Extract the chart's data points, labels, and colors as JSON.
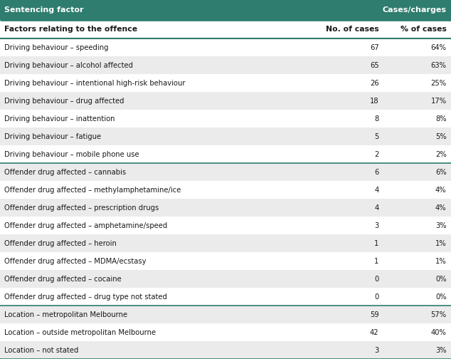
{
  "header_col1": "Sentencing factor",
  "header_col2": "Cases/charges",
  "subheader_col1": "Factors relating to the offence",
  "subheader_col2": "No. of cases",
  "subheader_col3": "% of cases",
  "rows": [
    [
      "Driving behaviour – speeding",
      "67",
      "64%"
    ],
    [
      "Driving behaviour – alcohol affected",
      "65",
      "63%"
    ],
    [
      "Driving behaviour – intentional high-risk behaviour",
      "26",
      "25%"
    ],
    [
      "Driving behaviour – drug affected",
      "18",
      "17%"
    ],
    [
      "Driving behaviour – inattention",
      "8",
      "8%"
    ],
    [
      "Driving behaviour – fatigue",
      "5",
      "5%"
    ],
    [
      "Driving behaviour – mobile phone use",
      "2",
      "2%"
    ],
    [
      "Offender drug affected – cannabis",
      "6",
      "6%"
    ],
    [
      "Offender drug affected – methylamphetamine/ice",
      "4",
      "4%"
    ],
    [
      "Offender drug affected – prescription drugs",
      "4",
      "4%"
    ],
    [
      "Offender drug affected – amphetamine/speed",
      "3",
      "3%"
    ],
    [
      "Offender drug affected – heroin",
      "1",
      "1%"
    ],
    [
      "Offender drug affected – MDMA/ecstasy",
      "1",
      "1%"
    ],
    [
      "Offender drug affected – cocaine",
      "0",
      "0%"
    ],
    [
      "Offender drug affected – drug type not stated",
      "0",
      "0%"
    ],
    [
      "Location – metropolitan Melbourne",
      "59",
      "57%"
    ],
    [
      "Location – outside metropolitan Melbourne",
      "42",
      "40%"
    ],
    [
      "Location – not stated",
      "3",
      "3%"
    ]
  ],
  "divider_before": [
    7,
    15
  ],
  "teal_color": "#2e7d6e",
  "header_text_color": "#ffffff",
  "row_bg_alt": "#ebebeb",
  "row_bg_white": "#ffffff",
  "body_text_color": "#1a1a1a",
  "fig_bg": "#ffffff",
  "header_fontsize": 8.0,
  "subheader_fontsize": 7.8,
  "body_fontsize": 7.2
}
